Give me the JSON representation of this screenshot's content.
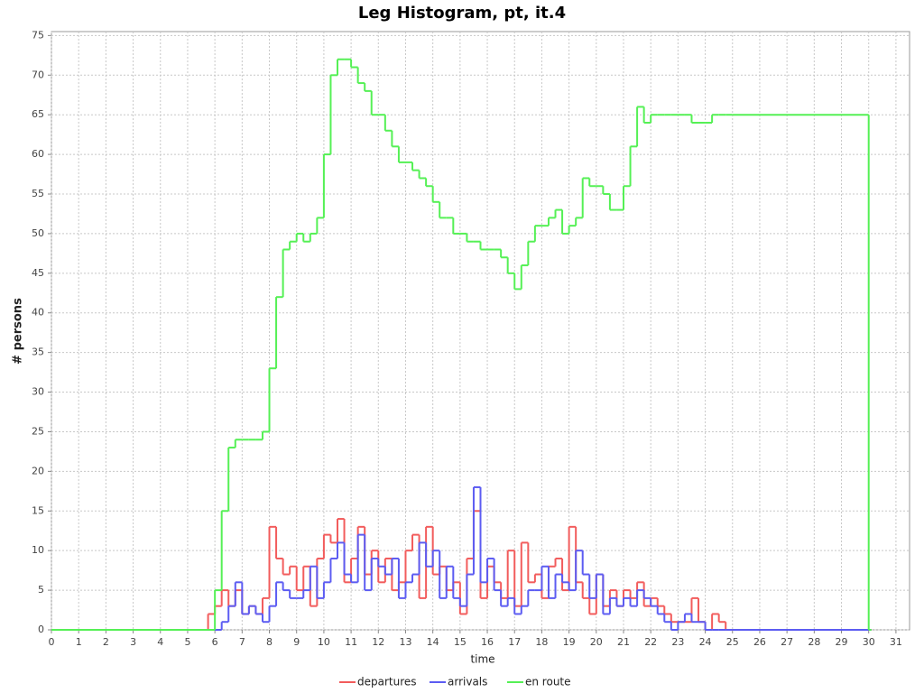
{
  "chart_data": {
    "type": "step-line",
    "title": "Leg Histogram, pt, it.4",
    "x_label": "time",
    "y_label": "# persons",
    "x": [
      0,
      5.75,
      6,
      6.25,
      6.5,
      6.75,
      7,
      7.25,
      7.5,
      7.75,
      8,
      8.25,
      8.5,
      8.75,
      9,
      9.25,
      9.5,
      9.75,
      10,
      10.25,
      10.5,
      10.75,
      11,
      11.25,
      11.5,
      11.75,
      12,
      12.25,
      12.5,
      12.75,
      13,
      13.25,
      13.5,
      13.75,
      14,
      14.25,
      14.5,
      14.75,
      15,
      15.25,
      15.5,
      15.75,
      16,
      16.25,
      16.5,
      16.75,
      17,
      17.25,
      17.5,
      17.75,
      18,
      18.25,
      18.5,
      18.75,
      19,
      19.25,
      19.5,
      19.75,
      20,
      20.25,
      20.5,
      20.75,
      21,
      21.25,
      21.5,
      21.75,
      22,
      22.25,
      22.5,
      22.75,
      23,
      23.25,
      23.5,
      23.75,
      24,
      24.25,
      24.5,
      24.75,
      25,
      30
    ],
    "series": [
      {
        "name": "departures",
        "color": "#f25c5c",
        "values": [
          0,
          2,
          3,
          5,
          3,
          5,
          2,
          3,
          2,
          4,
          13,
          9,
          7,
          8,
          5,
          8,
          3,
          9,
          12,
          11,
          14,
          6,
          9,
          13,
          7,
          10,
          6,
          9,
          5,
          6,
          10,
          12,
          4,
          13,
          7,
          8,
          5,
          6,
          2,
          9,
          15,
          4,
          8,
          6,
          4,
          10,
          3,
          11,
          6,
          7,
          4,
          8,
          9,
          5,
          13,
          6,
          4,
          2,
          7,
          3,
          5,
          3,
          5,
          4,
          6,
          3,
          4,
          3,
          2,
          1,
          1,
          1,
          4,
          1,
          0,
          2,
          1,
          0,
          0,
          0
        ]
      },
      {
        "name": "arrivals",
        "color": "#5c5cf2",
        "values": [
          0,
          0,
          0,
          1,
          3,
          6,
          2,
          3,
          2,
          1,
          3,
          6,
          5,
          4,
          4,
          5,
          8,
          4,
          6,
          9,
          11,
          7,
          6,
          12,
          5,
          9,
          8,
          7,
          9,
          4,
          6,
          7,
          11,
          8,
          10,
          4,
          8,
          4,
          3,
          7,
          18,
          6,
          9,
          5,
          3,
          4,
          2,
          3,
          5,
          5,
          8,
          4,
          7,
          6,
          5,
          10,
          7,
          4,
          7,
          2,
          4,
          3,
          4,
          3,
          5,
          4,
          3,
          2,
          1,
          0,
          1,
          2,
          1,
          1,
          0,
          0,
          0,
          0,
          0,
          0
        ]
      },
      {
        "name": "en route",
        "color": "#55f055",
        "values": [
          0,
          0,
          5,
          15,
          23,
          24,
          24,
          24,
          24,
          25,
          33,
          42,
          48,
          49,
          50,
          49,
          50,
          52,
          60,
          70,
          72,
          72,
          71,
          69,
          68,
          65,
          65,
          63,
          61,
          59,
          59,
          58,
          57,
          56,
          54,
          52,
          52,
          50,
          50,
          49,
          49,
          48,
          48,
          48,
          47,
          45,
          43,
          46,
          49,
          51,
          51,
          52,
          53,
          50,
          51,
          52,
          57,
          56,
          56,
          55,
          53,
          53,
          56,
          61,
          66,
          64,
          65,
          65,
          65,
          65,
          65,
          65,
          64,
          64,
          64,
          65,
          65,
          65,
          65,
          0
        ]
      }
    ],
    "xlim": [
      0,
      31.5
    ],
    "ylim": [
      0,
      75.5
    ],
    "xticks": [
      0,
      1,
      2,
      3,
      4,
      5,
      6,
      7,
      8,
      9,
      10,
      11,
      12,
      13,
      14,
      15,
      16,
      17,
      18,
      19,
      20,
      21,
      22,
      23,
      24,
      25,
      26,
      27,
      28,
      29,
      30,
      31
    ],
    "yticks": [
      0,
      5,
      10,
      15,
      20,
      25,
      30,
      35,
      40,
      45,
      50,
      55,
      60,
      65,
      70,
      75
    ],
    "grid": true,
    "legend": "bottom"
  }
}
